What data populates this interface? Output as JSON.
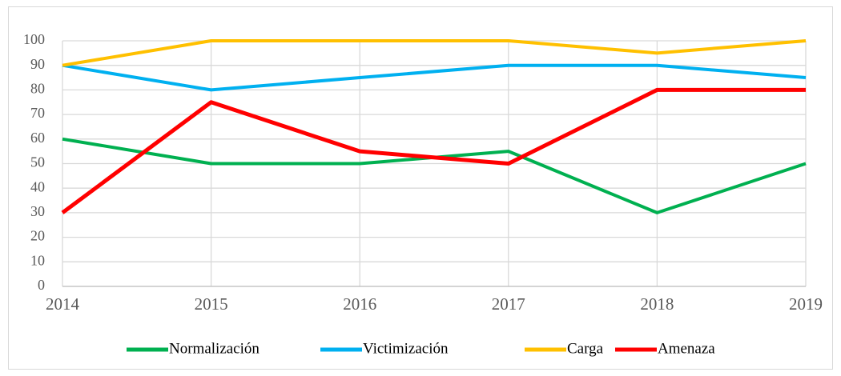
{
  "chart_data": {
    "type": "line",
    "x": [
      2014,
      2015,
      2016,
      2017,
      2018,
      2019
    ],
    "xlim": [
      2014,
      2019
    ],
    "xticks": [
      2014,
      2015,
      2016,
      2017,
      2018,
      2019
    ],
    "ylim": [
      0,
      100
    ],
    "yticks": [
      0,
      10,
      20,
      30,
      40,
      50,
      60,
      70,
      80,
      90,
      100
    ],
    "grid": true,
    "legend": "bottom",
    "series": [
      {
        "name": "Normalización",
        "color": "#00b050",
        "values": [
          60,
          50,
          50,
          55,
          30,
          50
        ]
      },
      {
        "name": "Victimización",
        "color": "#00b0f0",
        "values": [
          90,
          80,
          85,
          90,
          90,
          85
        ]
      },
      {
        "name": "Carga",
        "color": "#ffc000",
        "values": [
          90,
          100,
          100,
          100,
          95,
          100
        ]
      },
      {
        "name": "Amenaza",
        "color": "#ff0000",
        "values": [
          30,
          75,
          55,
          50,
          80,
          80
        ]
      }
    ]
  }
}
